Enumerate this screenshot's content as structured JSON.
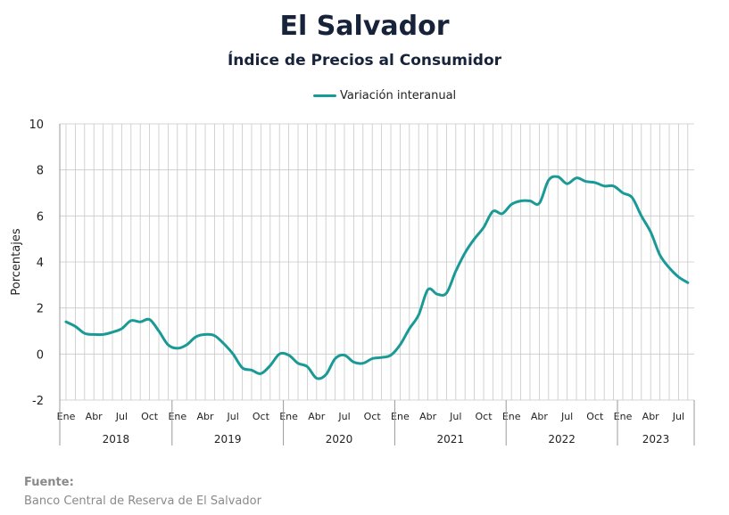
{
  "title": "El Salvador",
  "subtitle": "Índice de Precios al Consumidor",
  "source": {
    "label": "Fuente:",
    "text": "Banco Central de Reserva de El Salvador"
  },
  "colors": {
    "line": "#1a9a96",
    "title": "#17233a",
    "grid": "#c8c8c8",
    "source": "#8a8a8a"
  },
  "chart_data": {
    "type": "line",
    "title": "El Salvador",
    "subtitle": "Índice de Precios al Consumidor",
    "ylabel": "Porcentajes",
    "xlabel": "",
    "ylim": [
      -2,
      10
    ],
    "yticks": [
      -2,
      0,
      2,
      4,
      6,
      8,
      10
    ],
    "grid": true,
    "legend": "top-center",
    "month_tick_labels": [
      "Ene",
      "Abr",
      "Jul",
      "Oct"
    ],
    "years": [
      "2018",
      "2019",
      "2020",
      "2021",
      "2022",
      "2023"
    ],
    "series": [
      {
        "name": "Variación interanual",
        "x": [
          "2018-01",
          "2018-02",
          "2018-03",
          "2018-04",
          "2018-05",
          "2018-06",
          "2018-07",
          "2018-08",
          "2018-09",
          "2018-10",
          "2018-11",
          "2018-12",
          "2019-01",
          "2019-02",
          "2019-03",
          "2019-04",
          "2019-05",
          "2019-06",
          "2019-07",
          "2019-08",
          "2019-09",
          "2019-10",
          "2019-11",
          "2019-12",
          "2020-01",
          "2020-02",
          "2020-03",
          "2020-04",
          "2020-05",
          "2020-06",
          "2020-07",
          "2020-08",
          "2020-09",
          "2020-10",
          "2020-11",
          "2020-12",
          "2021-01",
          "2021-02",
          "2021-03",
          "2021-04",
          "2021-05",
          "2021-06",
          "2021-07",
          "2021-08",
          "2021-09",
          "2021-10",
          "2021-11",
          "2021-12",
          "2022-01",
          "2022-02",
          "2022-03",
          "2022-04",
          "2022-05",
          "2022-06",
          "2022-07",
          "2022-08",
          "2022-09",
          "2022-10",
          "2022-11",
          "2022-12",
          "2023-01",
          "2023-02",
          "2023-03",
          "2023-04",
          "2023-05",
          "2023-06",
          "2023-07",
          "2023-08"
        ],
        "values": [
          1.4,
          1.2,
          0.9,
          0.85,
          0.85,
          0.95,
          1.1,
          1.45,
          1.4,
          1.5,
          1.0,
          0.4,
          0.25,
          0.4,
          0.75,
          0.85,
          0.8,
          0.45,
          0.0,
          -0.6,
          -0.7,
          -0.85,
          -0.5,
          0.0,
          -0.05,
          -0.4,
          -0.55,
          -1.05,
          -0.9,
          -0.2,
          -0.05,
          -0.35,
          -0.4,
          -0.2,
          -0.15,
          -0.05,
          0.4,
          1.1,
          1.7,
          2.8,
          2.6,
          2.65,
          3.6,
          4.4,
          5.0,
          5.5,
          6.2,
          6.1,
          6.5,
          6.65,
          6.65,
          6.55,
          7.55,
          7.7,
          7.4,
          7.65,
          7.5,
          7.45,
          7.3,
          7.3,
          7.0,
          6.8,
          6.0,
          5.3,
          4.3,
          3.75,
          3.35,
          3.1
        ]
      }
    ]
  }
}
